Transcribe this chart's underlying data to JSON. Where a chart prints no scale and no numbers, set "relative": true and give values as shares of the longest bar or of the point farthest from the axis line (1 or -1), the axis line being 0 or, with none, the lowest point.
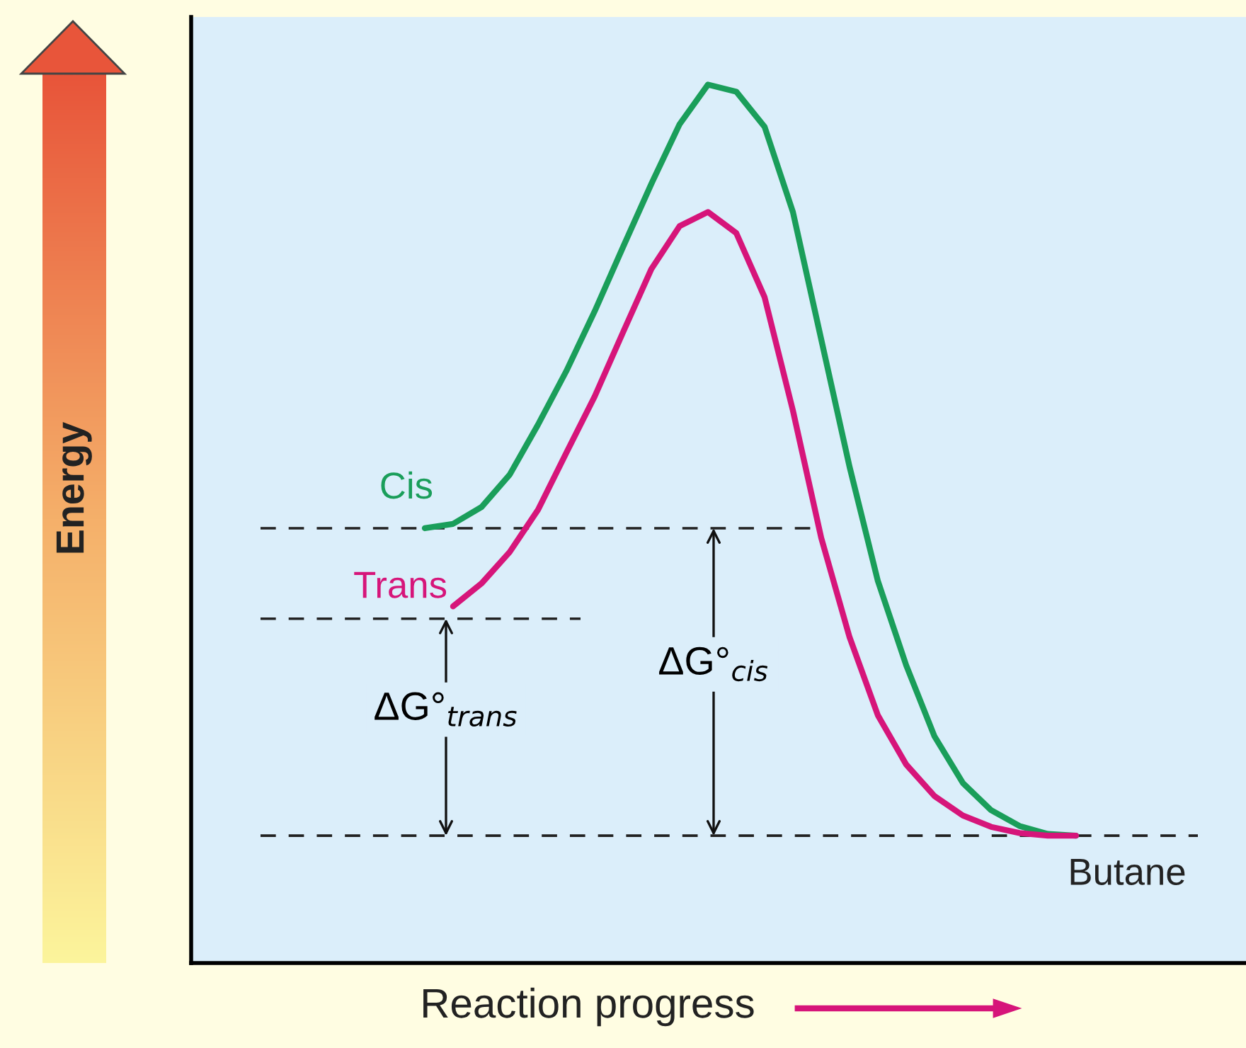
{
  "chart_data": {
    "type": "line",
    "relative": true,
    "xlabel": "Reaction progress",
    "ylabel": "Energy",
    "categories": [
      null,
      null,
      null,
      null,
      null,
      null,
      null,
      null,
      null,
      null,
      null,
      null,
      null,
      null,
      null,
      null,
      null,
      null,
      null,
      null,
      null,
      null,
      null,
      null,
      null,
      null,
      null,
      null,
      null,
      null,
      null,
      null,
      null,
      null,
      null,
      null,
      null
    ],
    "series": [
      {
        "color": "#1a9e5a",
        "values": [
          null,
          null,
          null,
          null,
          null,
          null,
          null,
          null,
          0.495,
          0.5,
          0.519,
          0.556,
          0.613,
          0.674,
          0.742,
          0.815,
          0.887,
          0.955,
          1.0,
          0.992,
          0.952,
          0.855,
          0.71,
          0.565,
          0.435,
          0.339,
          0.258,
          0.205,
          0.174,
          0.156,
          0.147,
          0.145,
          null,
          null,
          null,
          null,
          null
        ]
      },
      {
        "color": "#d6157a",
        "values": [
          null,
          null,
          null,
          null,
          null,
          null,
          null,
          null,
          null,
          0.406,
          0.432,
          0.468,
          0.516,
          0.581,
          0.645,
          0.718,
          0.79,
          0.839,
          0.855,
          0.831,
          0.758,
          0.629,
          0.484,
          0.371,
          0.282,
          0.226,
          0.19,
          0.168,
          0.155,
          0.148,
          0.145,
          0.145,
          null,
          null,
          null,
          null,
          null
        ]
      }
    ],
    "ref_lines": [
      {
        "axis": "y",
        "value": 0.495,
        "line_style": "dashed",
        "color": "#222222"
      },
      {
        "axis": "y",
        "value": 0.392,
        "line_style": "dashed",
        "color": "#222222"
      },
      {
        "axis": "y",
        "value": 0.145,
        "line_style": "dashed",
        "color": "#222222"
      }
    ],
    "annotations": [
      "Cis",
      "Trans",
      "Butane",
      "ΔG°$_{trans}$",
      "ΔG°$_{cis}$"
    ],
    "marker": "none"
  }
}
